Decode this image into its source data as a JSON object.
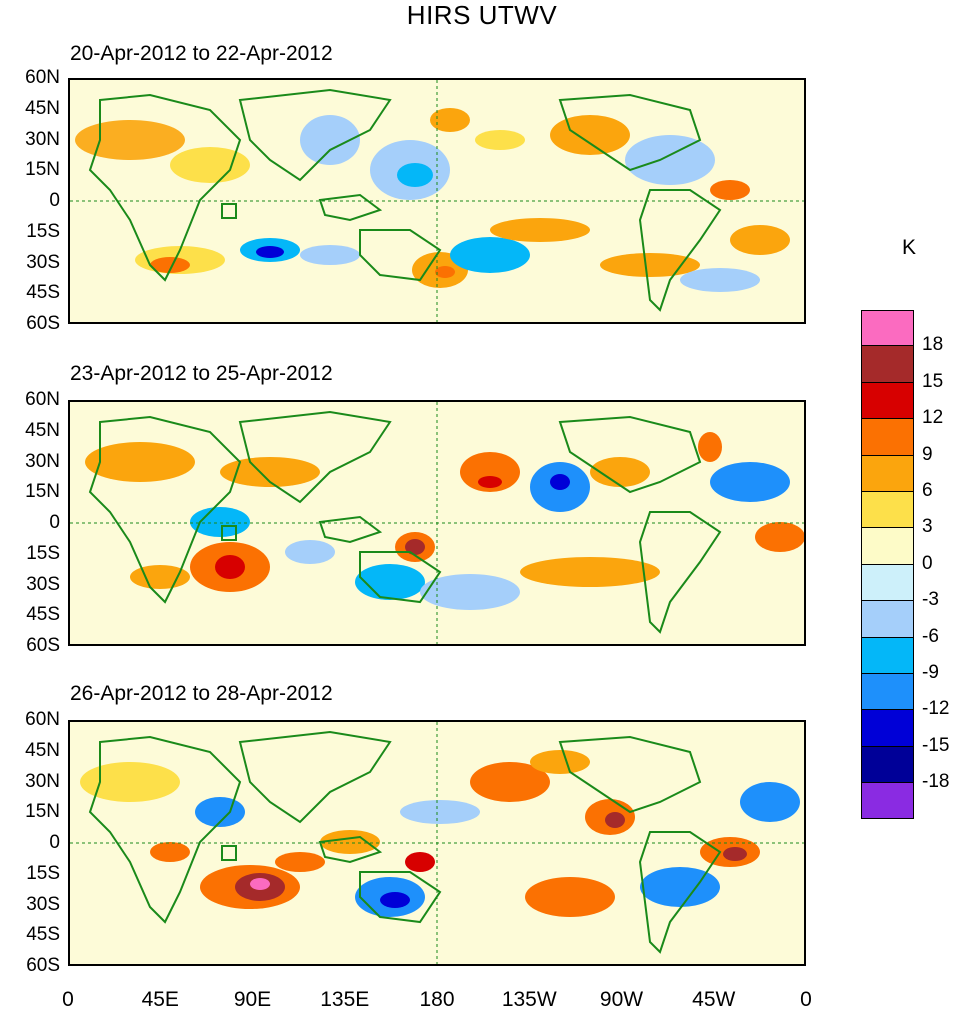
{
  "figure": {
    "title": "HIRS UTWV"
  },
  "panels": [
    {
      "title": "20-Apr-2012 to 22-Apr-2012"
    },
    {
      "title": "23-Apr-2012 to 25-Apr-2012"
    },
    {
      "title": "26-Apr-2012 to 28-Apr-2012"
    }
  ],
  "axes": {
    "lat_labels": [
      "60N",
      "45N",
      "30N",
      "15N",
      "0",
      "15S",
      "30S",
      "45S",
      "60S"
    ],
    "lon_labels": [
      "0",
      "45E",
      "90E",
      "135E",
      "180",
      "135W",
      "90W",
      "45W",
      "0"
    ]
  },
  "colorbar": {
    "unit": "K",
    "labels": [
      "18",
      "15",
      "12",
      "9",
      "6",
      "3",
      "0",
      "-3",
      "-6",
      "-9",
      "-12",
      "-15",
      "-18"
    ],
    "colors": [
      "#fb6bc0",
      "#a52a2a",
      "#d70000",
      "#fb7102",
      "#fba50d",
      "#fde04a",
      "#fdfbc8",
      "#cdf0fa",
      "#a5cffa",
      "#04b7f8",
      "#1e90fb",
      "#0000d7",
      "#000098",
      "#8a2be2"
    ]
  },
  "map_colors": {
    "coast": "#1a8a1a",
    "background": "#fdfbd8"
  }
}
